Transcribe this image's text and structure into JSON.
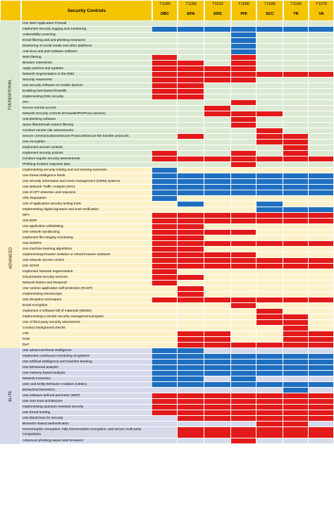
{
  "header": {
    "title": "Security Controls",
    "columns": [
      {
        "code": "T1189",
        "name": "DBC"
      },
      {
        "code": "T1189",
        "name": "EPA"
      },
      {
        "code": "T1133",
        "name": "ERS"
      },
      {
        "code": "T1566",
        "name": "PHI"
      },
      {
        "code": "T1595",
        "name": "SCC"
      },
      {
        "code": "T1199",
        "name": "TR"
      },
      {
        "code": "T1078",
        "name": "VA"
      }
    ]
  },
  "sections": [
    {
      "name": "FOUNDATIONAL",
      "bg": "#dbe9d2",
      "rows": [
        {
          "label": "Use Web Application Firewall",
          "cells": "......."
        },
        {
          "label": "Implement security logging and monitoring",
          "cells": "BBBBBBB"
        },
        {
          "label": "Vulnerability scanning",
          "cells": "...B..."
        },
        {
          "label": "Email filtering and anti-phishing measures",
          "cells": "...B..."
        },
        {
          "label": "Monitoring of social media and other platforms",
          "cells": "...B..."
        },
        {
          "label": "Anti-virus and anti-malware software",
          "cells": "...B..."
        },
        {
          "label": "Web filtering",
          "cells": "R..R..."
        },
        {
          "label": "Browser extensions",
          "cells": "RR.R..."
        },
        {
          "label": "Apply patches and updates",
          "cells": "RRRR..."
        },
        {
          "label": "Network Segmentation in the DMZ",
          "cells": "RRRRRRR"
        },
        {
          "label": "Security Awareness",
          "cells": "RRRR..."
        },
        {
          "label": "Use security software on mobile devices",
          "cells": "RR....."
        },
        {
          "label": "Enabling host-based firewalls",
          "cells": "RR....."
        },
        {
          "label": "Implementing DNS security",
          "cells": "RR....."
        },
        {
          "label": "2FA",
          "cells": "...R..."
        },
        {
          "label": "Secure remote access",
          "cells": "..R...."
        },
        {
          "label": "Network Security controls (Firewalls/IPS/Proxy servers)",
          "cells": "..RRR.."
        },
        {
          "label": "Anti-phishing software",
          "cells": "...R..."
        },
        {
          "label": "Spam filters/email content filtering",
          "cells": "...R..."
        },
        {
          "label": "Conduct vendor risk assessments",
          "cells": "....R.."
        },
        {
          "label": "Secure communications/Secure Protocols/secure file transfer protocols",
          "cells": ".R..RR."
        },
        {
          "label": "Use encryption",
          "cells": "....RR."
        },
        {
          "label": "Implement access controls",
          "cells": ".....R."
        },
        {
          "label": "Implement security policies",
          "cells": "R..R.R."
        },
        {
          "label": "Conduct regular security assessments",
          "cells": "RRRRRRR"
        },
        {
          "label": "Phishing incident response plan",
          "cells": "...R..."
        }
      ]
    },
    {
      "name": "ADVANCED",
      "bg": "#fdf1c9",
      "rows": [
        {
          "label": "Implementing security testing and red teaming exercises",
          "cells": "B......"
        },
        {
          "label": "Use threat intelligence feeds",
          "cells": "BBBBBBB"
        },
        {
          "label": "Use security information and event management (SIEM) systems",
          "cells": "BBBBBBB"
        },
        {
          "label": "Use Network Traffic Analysis (NTA)",
          "cells": "BBBBBBB"
        },
        {
          "label": "Use of APT detection and response",
          "cells": "BBBBBBB"
        },
        {
          "label": "URL Reputation",
          "cells": "B......"
        },
        {
          "label": "Use of application security testing tools",
          "cells": ".B..B.."
        },
        {
          "label": "Implementing digital signature and trust verification",
          "cells": "....BBB"
        },
        {
          "label": "MFA",
          "cells": "RRRRRRR"
        },
        {
          "label": "Use EDR",
          "cells": "RRRRRRR"
        },
        {
          "label": "Use application whitelisting",
          "cells": "RR....."
        },
        {
          "label": "Use network sandboxing",
          "cells": "RRRR..."
        },
        {
          "label": "Implement file integrity monitoring",
          "cells": "RR....."
        },
        {
          "label": "Use IDS/IPS",
          "cells": "RRRRRRR"
        },
        {
          "label": "Use machine learning algorithms",
          "cells": "RR....."
        },
        {
          "label": "Implementing browser isolation or virtual browser solutions",
          "cells": "RRRR..."
        },
        {
          "label": "Use network access control",
          "cells": "RRRRRRR"
        },
        {
          "label": "Use SOAR",
          "cells": "RRRRRRR"
        },
        {
          "label": "Implement Network segmentation",
          "cells": "R......"
        },
        {
          "label": "Cloud-based security services",
          "cells": "RR....."
        },
        {
          "label": "Network Detect and Respond",
          "cells": "R......"
        },
        {
          "label": "Use runtime application self-protection (RASP)",
          "cells": ".R....."
        },
        {
          "label": "Implementing DevSecOps",
          "cells": ".R....."
        },
        {
          "label": "Use deception techniques",
          "cells": "RRRRRRR"
        },
        {
          "label": "Email encryption",
          "cells": "...R..."
        },
        {
          "label": "Implement a software bill of materials (SBOM)",
          "cells": "....R.."
        },
        {
          "label": "Implementing a vendor security management program",
          "cells": "....RR."
        },
        {
          "label": "Use of third-party security assessment",
          "cells": "....RR."
        },
        {
          "label": "Conduct background checks",
          "cells": ".....R."
        },
        {
          "label": "IAM",
          "cells": ".RR..RR"
        },
        {
          "label": "PAM",
          "cells": ".RR..RR"
        },
        {
          "label": "DLP",
          "cells": ".RRRRRR"
        }
      ]
    },
    {
      "name": "ELITE",
      "bg": "#d5d9ea",
      "rows": [
        {
          "label": "Use advanced threat intelligence",
          "cells": "BB....."
        },
        {
          "label": "Implement continuous monitoring of systems",
          "cells": "BBBBBBB"
        },
        {
          "label": "Use artificial intelligence and machine learning",
          "cells": "BBBBBBB"
        },
        {
          "label": "Use behavioral analysis",
          "cells": "BBBBBBB"
        },
        {
          "label": "Use memory-based analysis",
          "cells": "BBBBBBB"
        },
        {
          "label": "Network Forensics",
          "cells": "BB.B..."
        },
        {
          "label": "User and Entity Behavior Analytics (UEBA)",
          "cells": "BBBBBBB"
        },
        {
          "label": "Behavioral biometrics",
          "cells": ".....B."
        },
        {
          "label": "Use software-defined perimeter (SDP)",
          "cells": "RRRRRRR"
        },
        {
          "label": "Use zero-trust architecture",
          "cells": "RRRRRRR"
        },
        {
          "label": "Implementing quantum-resistant security",
          "cells": "RRRRRRR"
        },
        {
          "label": "Use threat hunting",
          "cells": "RRRRRRR"
        },
        {
          "label": "Use blockchain for security",
          "cells": ".RRRRRR"
        },
        {
          "label": "Biometric-based authentication",
          "cells": "....RR."
        },
        {
          "label": "Homomorphic encryption, fully homomorphic encryption, and secure multi-party computation",
          "cells": ".RRRRRR",
          "tall": true
        },
        {
          "label": "Advanced phishing-aware web browsers",
          "cells": "...R..."
        }
      ]
    }
  ],
  "colors": {
    "header": "#f5c400",
    "red": "#e21a1a",
    "blue": "#1f6fc1",
    "foundational_bg": "#dbe9d2",
    "advanced_bg": "#fdf1c9",
    "elite_bg": "#d5d9ea"
  }
}
